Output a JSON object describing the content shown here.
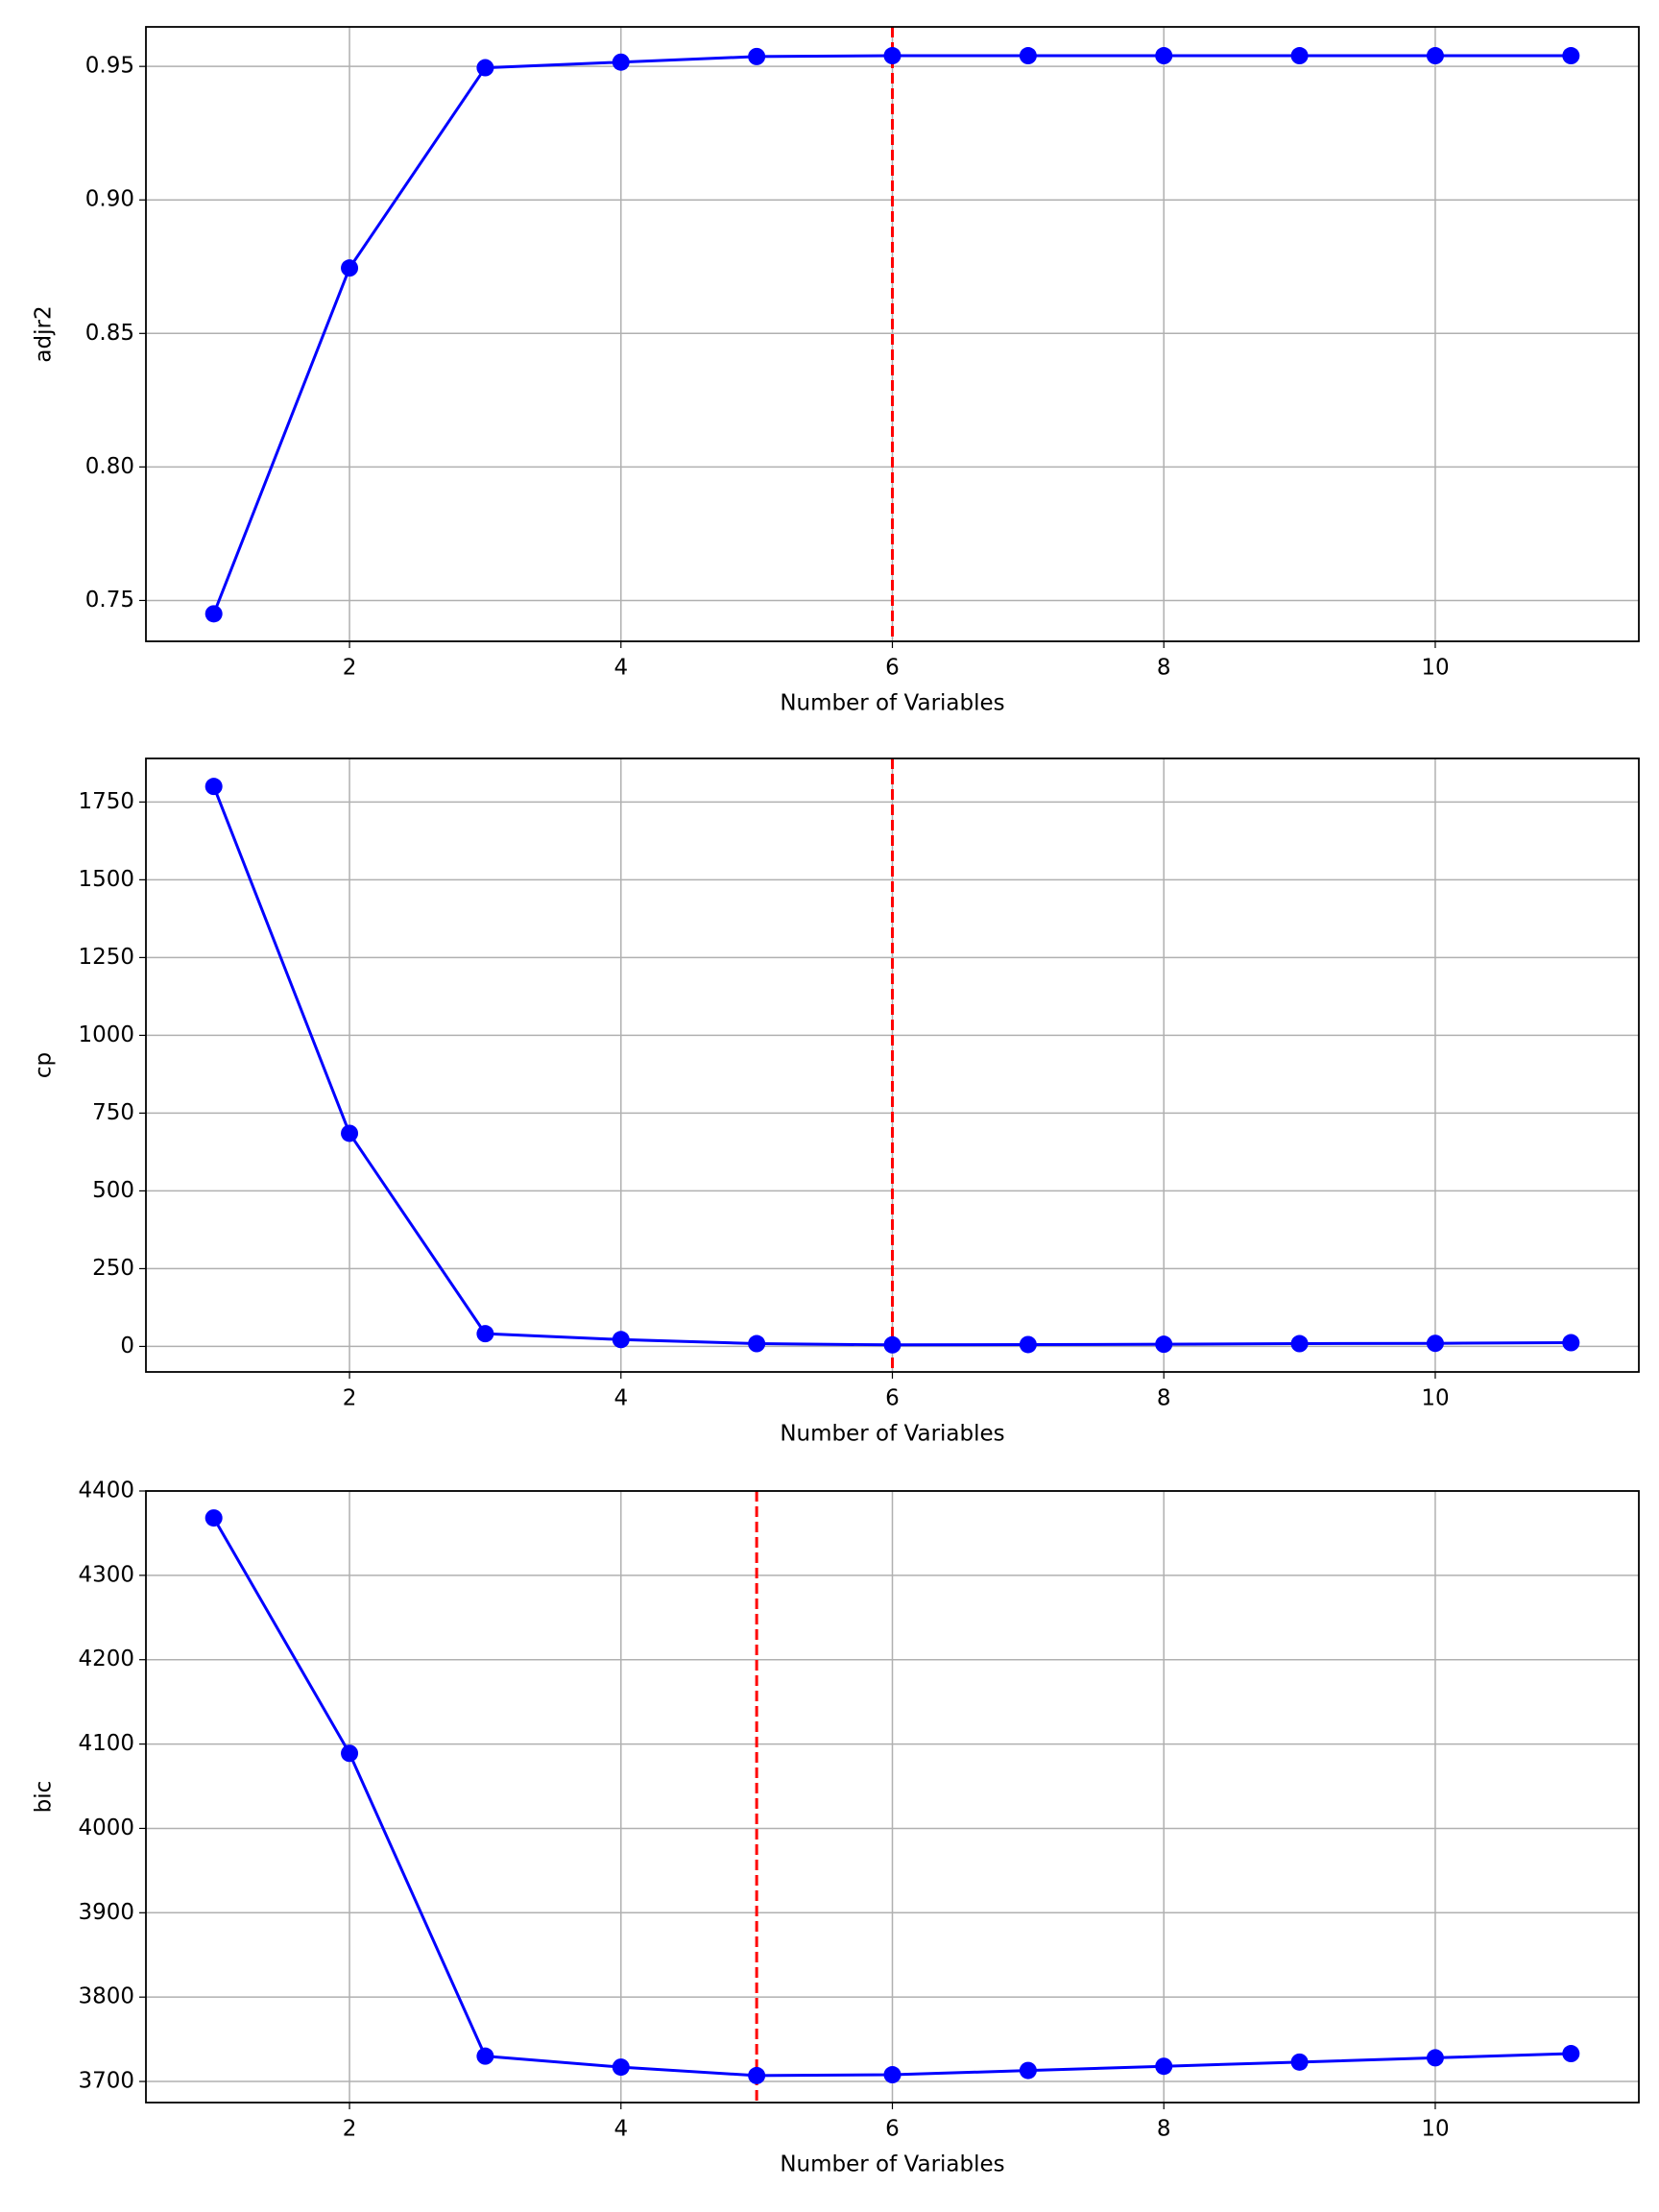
{
  "chart_data": [
    {
      "type": "line",
      "x": [
        1,
        2,
        3,
        4,
        5,
        6,
        7,
        8,
        9,
        10,
        11
      ],
      "values": [
        0.745,
        0.8745,
        0.9495,
        0.9516,
        0.9537,
        0.954,
        0.954,
        0.954,
        0.954,
        0.954,
        0.954
      ],
      "color": "#0000ff",
      "x_label": "Number of Variables",
      "y_label": "adjr2",
      "xlim": [
        0.5,
        11.5
      ],
      "xticks": [
        2,
        4,
        6,
        8,
        10
      ],
      "ylim": [
        0.7347,
        0.9648
      ],
      "yticks": [
        0.75,
        {
          "value": 0.8,
          "label": "0.80"
        },
        0.85,
        {
          "value": 0.9,
          "label": "0.90"
        },
        0.95
      ],
      "grid": true,
      "vline": 6,
      "vline_color": "#ff0000"
    },
    {
      "type": "line",
      "x": [
        1,
        2,
        3,
        4,
        5,
        6,
        7,
        8,
        9,
        10,
        11
      ],
      "values": [
        1800,
        685,
        41,
        22,
        9,
        5,
        6,
        7,
        9,
        10,
        12
      ],
      "color": "#0000ff",
      "x_label": "Number of Variables",
      "y_label": "cp",
      "xlim": [
        0.5,
        11.5
      ],
      "xticks": [
        2,
        4,
        6,
        8,
        10
      ],
      "ylim": [
        -82,
        1890
      ],
      "yticks": [
        0,
        250,
        500,
        750,
        1000,
        1250,
        1500,
        1750
      ],
      "grid": true,
      "vline": 6,
      "vline_color": "#ff0000"
    },
    {
      "type": "line",
      "x": [
        1,
        2,
        3,
        4,
        5,
        6,
        7,
        8,
        9,
        10,
        11
      ],
      "values": [
        4368,
        4089,
        3730,
        3717,
        3707,
        3708,
        3713,
        3718,
        3723,
        3728,
        3733
      ],
      "color": "#0000ff",
      "x_label": "Number of Variables",
      "y_label": "bic",
      "xlim": [
        0.5,
        11.5
      ],
      "xticks": [
        2,
        4,
        6,
        8,
        10
      ],
      "ylim": [
        3675,
        4400
      ],
      "yticks": [
        3700,
        3800,
        3900,
        4000,
        4100,
        4200,
        4300,
        4400
      ],
      "grid": true,
      "vline": 5,
      "vline_color": "#ff0000"
    }
  ]
}
